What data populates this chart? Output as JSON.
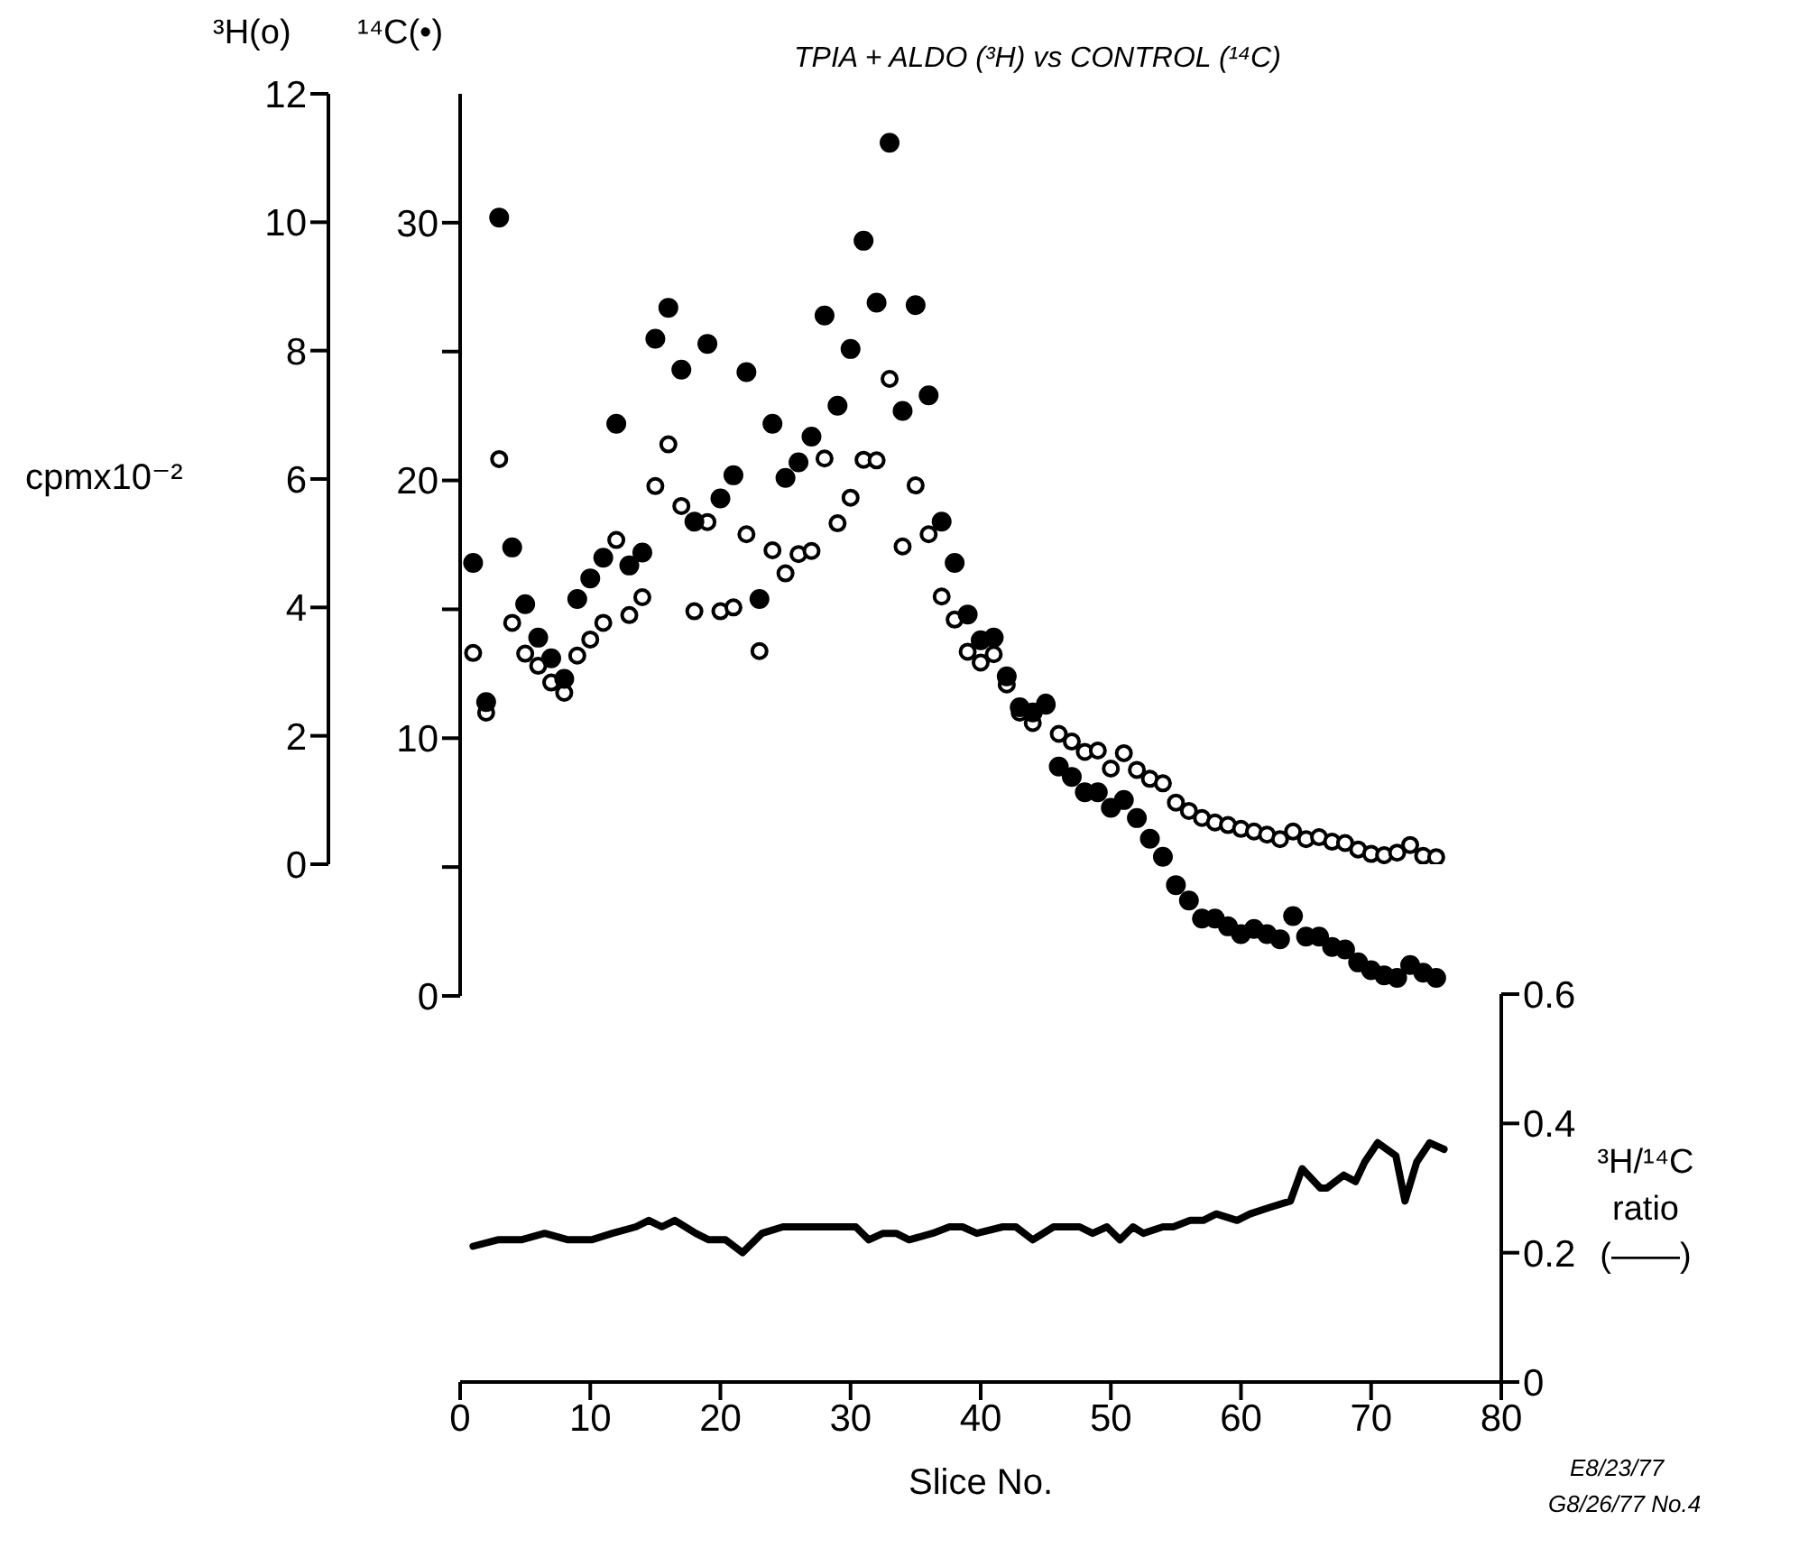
{
  "chart_data": [
    {
      "type": "scatter",
      "ylabel": "³H(o)",
      "annotations": [
        "cpmx10⁻²"
      ],
      "x": [
        1,
        2,
        3,
        4,
        5,
        6,
        7,
        8,
        9,
        10,
        11,
        12,
        13,
        14,
        15,
        16,
        17,
        18,
        19,
        20,
        21,
        22,
        23,
        24,
        25,
        26,
        27,
        28,
        29,
        30,
        31,
        32,
        33,
        34,
        35,
        36,
        37,
        38,
        39,
        40,
        41,
        42,
        43,
        44,
        45,
        46,
        47,
        48,
        49,
        50,
        51,
        52,
        53,
        54,
        55,
        56,
        57,
        58,
        59,
        60,
        61,
        62,
        63,
        64,
        65,
        66,
        67,
        68,
        69,
        70,
        71,
        72,
        73,
        74,
        75
      ],
      "xlim": [
        0,
        80
      ],
      "ylim": [
        0,
        12
      ],
      "yticks": [
        0,
        2,
        4,
        6,
        8,
        10,
        12
      ],
      "tick_labels": "y",
      "marker": "circle",
      "series": [
        {
          "color": "#000000",
          "values": [
            3.29,
            2.36,
            6.31,
            3.76,
            3.28,
            3.09,
            2.83,
            2.67,
            3.25,
            3.5,
            3.76,
            5.05,
            3.88,
            4.16,
            5.89,
            6.54,
            5.58,
            3.94,
            5.33,
            3.94,
            4.0,
            5.14,
            3.32,
            4.89,
            4.53,
            4.83,
            4.88,
            6.32,
            5.31,
            5.71,
            6.3,
            6.29,
            7.56,
            4.95,
            5.9,
            5.14,
            4.17,
            3.81,
            3.31,
            3.14,
            3.27,
            2.8,
            2.36,
            2.2,
            2.52,
            2.03,
            1.91,
            1.75,
            1.77,
            1.49,
            1.73,
            1.47,
            1.33,
            1.26,
            0.96,
            0.83,
            0.72,
            0.65,
            0.61,
            0.55,
            0.51,
            0.46,
            0.39,
            0.51,
            0.39,
            0.42,
            0.35,
            0.33,
            0.23,
            0.16,
            0.14,
            0.18,
            0.3,
            0.13,
            0.11
          ]
        }
      ]
    },
    {
      "type": "scatter",
      "title": "TPIA + ALDO (³H) vs CONTROL (¹⁴C)",
      "ylabel": "¹⁴C(•)",
      "x": [
        1,
        2,
        3,
        4,
        5,
        6,
        7,
        8,
        9,
        10,
        11,
        12,
        13,
        14,
        15,
        16,
        17,
        18,
        19,
        20,
        21,
        22,
        23,
        24,
        25,
        26,
        27,
        28,
        29,
        30,
        31,
        32,
        33,
        34,
        35,
        36,
        37,
        38,
        39,
        40,
        41,
        42,
        43,
        44,
        45,
        46,
        47,
        48,
        49,
        50,
        51,
        52,
        53,
        54,
        55,
        56,
        57,
        58,
        59,
        60,
        61,
        62,
        63,
        64,
        65,
        66,
        67,
        68,
        69,
        70,
        71,
        72,
        73,
        74,
        75
      ],
      "xlim": [
        0,
        80
      ],
      "ylim": [
        0,
        35
      ],
      "yticks": [
        0,
        {
          "value": 5,
          "label": null
        },
        10,
        {
          "value": 15,
          "label": null
        },
        20,
        {
          "value": 25,
          "label": null
        },
        30
      ],
      "tick_labels": "y",
      "marker": "circle",
      "series": [
        {
          "color": "#000000",
          "values": [
            16.8,
            11.4,
            30.2,
            17.4,
            15.2,
            13.9,
            13.1,
            12.3,
            15.4,
            16.2,
            17.0,
            22.2,
            16.7,
            17.2,
            25.5,
            26.7,
            24.3,
            18.4,
            25.3,
            19.3,
            20.2,
            24.2,
            15.4,
            22.2,
            20.1,
            20.7,
            21.7,
            26.4,
            22.9,
            25.1,
            29.3,
            26.9,
            33.1,
            22.7,
            26.8,
            23.3,
            18.4,
            16.8,
            14.8,
            13.8,
            13.9,
            12.4,
            11.2,
            11.0,
            11.3,
            8.9,
            8.5,
            7.9,
            7.9,
            7.3,
            7.6,
            6.9,
            6.1,
            5.4,
            4.3,
            3.7,
            3.0,
            3.0,
            2.7,
            2.4,
            2.6,
            2.4,
            2.2,
            3.1,
            2.3,
            2.3,
            1.9,
            1.8,
            1.3,
            1.0,
            0.8,
            0.7,
            1.2,
            0.9,
            0.7
          ]
        }
      ]
    },
    {
      "type": "line",
      "xlabel": "Slice No.",
      "ylabel": "³H/¹⁴C ratio (——)",
      "annotations": [
        "E8/23/77",
        "G8/26/77 No.4"
      ],
      "x": [
        1.0,
        2.9,
        4.7,
        6.5,
        8.3,
        10.1,
        11.7,
        13.5,
        14.5,
        15.5,
        16.5,
        18.1,
        19.1,
        20.4,
        21.7,
        23.2,
        24.8,
        26.3,
        27.6,
        28.6,
        30.4,
        31.4,
        32.5,
        33.5,
        34.5,
        36.3,
        37.6,
        38.6,
        39.7,
        41.7,
        42.7,
        44.0,
        45.6,
        47.6,
        48.6,
        49.7,
        50.7,
        51.7,
        52.5,
        54.0,
        54.8,
        56.1,
        57.1,
        58.1,
        59.7,
        60.7,
        62.2,
        63.8,
        64.7,
        66.1,
        66.6,
        67.9,
        68.8,
        69.5,
        70.5,
        71.9,
        72.6,
        73.5,
        74.5,
        75.6
      ],
      "xlim": [
        0,
        80
      ],
      "xticks": [
        0,
        10,
        20,
        30,
        40,
        50,
        60,
        70,
        80
      ],
      "ylim": [
        0,
        0.6
      ],
      "yticks": [
        0,
        0.2,
        0.4,
        0.6
      ],
      "series": [
        {
          "color": "#000000",
          "values": [
            0.21,
            0.22,
            0.22,
            0.23,
            0.22,
            0.22,
            0.23,
            0.24,
            0.25,
            0.24,
            0.25,
            0.23,
            0.22,
            0.22,
            0.2,
            0.23,
            0.24,
            0.24,
            0.24,
            0.24,
            0.24,
            0.22,
            0.23,
            0.23,
            0.22,
            0.23,
            0.24,
            0.24,
            0.23,
            0.24,
            0.24,
            0.22,
            0.24,
            0.24,
            0.23,
            0.24,
            0.22,
            0.24,
            0.23,
            0.24,
            0.24,
            0.25,
            0.25,
            0.26,
            0.25,
            0.26,
            0.27,
            0.28,
            0.33,
            0.3,
            0.3,
            0.32,
            0.31,
            0.34,
            0.37,
            0.35,
            0.28,
            0.34,
            0.37,
            0.36
          ]
        }
      ]
    }
  ]
}
